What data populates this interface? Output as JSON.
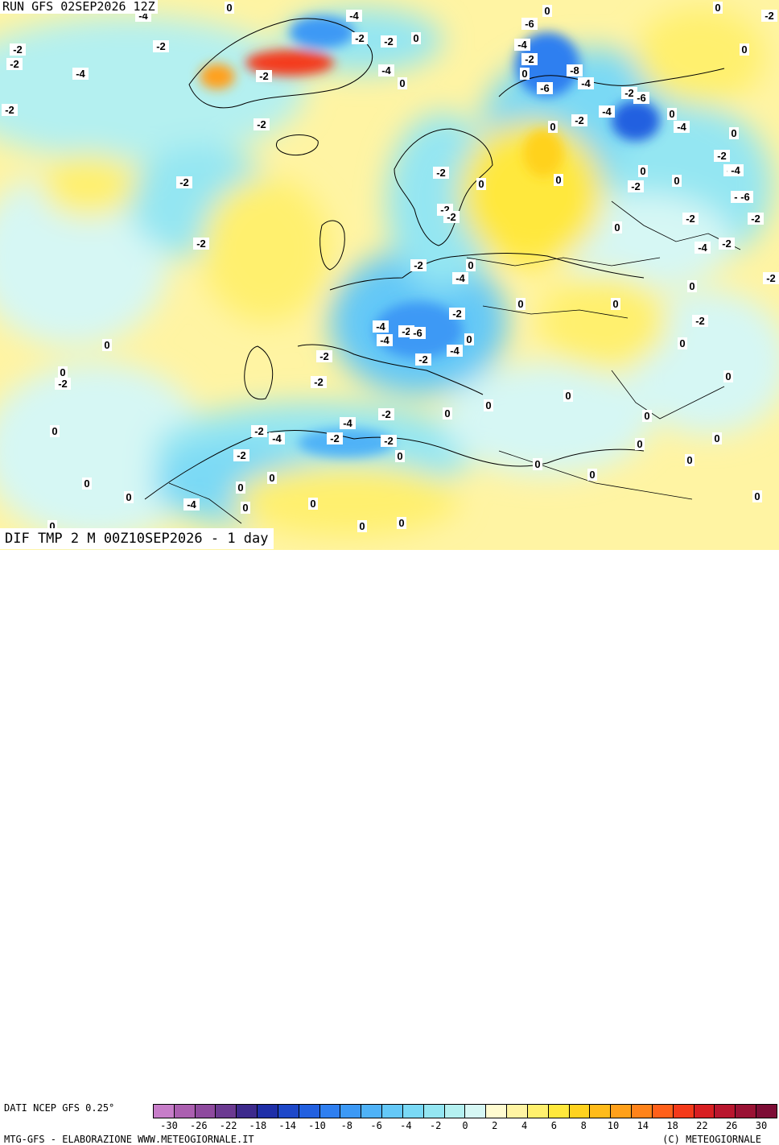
{
  "header": {
    "run_label": "RUN GFS 02SEP2026 12Z",
    "field_label": "DIF TMP 2 M 00Z10SEP2026 - 1 day"
  },
  "footer": {
    "data_source": "DATI NCEP GFS 0.25°",
    "credits_left": "MTG-GFS - ELABORAZIONE WWW.METEOGIORNALE.IT",
    "credits_right": "(C) METEOGIORNALE"
  },
  "legend": {
    "colors": [
      "#c77dc9",
      "#ab5fb0",
      "#8e4a9e",
      "#6b3a91",
      "#3d2a8c",
      "#1f2fa8",
      "#1e48c9",
      "#2260e0",
      "#2f7ff0",
      "#3c99f5",
      "#4fb2f7",
      "#64c8f7",
      "#7ad9f5",
      "#94e6f2",
      "#b4f0f0",
      "#d6f7f4",
      "#fffbd0",
      "#fff4a3",
      "#fff06e",
      "#ffe83c",
      "#ffd21f",
      "#ffbb1a",
      "#ffa01a",
      "#ff831a",
      "#ff601a",
      "#f43a1a",
      "#d81f22",
      "#b9162e",
      "#9a1234",
      "#7d0d35"
    ],
    "tick_labels": [
      "-30",
      "-26",
      "-22",
      "-18",
      "-14",
      "-10",
      "-8",
      "-6",
      "-4",
      "-2",
      "0",
      "2",
      "4",
      "6",
      "8",
      "10",
      "14",
      "18",
      "22",
      "26",
      "30"
    ]
  },
  "map_labels": [
    {
      "t": "-4"
    },
    {
      "t": "0"
    },
    {
      "t": "-2"
    },
    {
      "t": "-2"
    },
    {
      "t": "-4"
    },
    {
      "t": "-2"
    },
    {
      "t": "-2"
    },
    {
      "t": "-2"
    },
    {
      "t": "-2"
    },
    {
      "t": "-4"
    },
    {
      "t": "-2"
    },
    {
      "t": "-2"
    },
    {
      "t": "0"
    },
    {
      "t": "-4"
    },
    {
      "t": "0"
    },
    {
      "t": "-2"
    },
    {
      "t": "-2"
    },
    {
      "t": "-6"
    },
    {
      "t": "0"
    },
    {
      "t": "-4"
    },
    {
      "t": "-2"
    },
    {
      "t": "0"
    },
    {
      "t": "-8"
    },
    {
      "t": "-6"
    },
    {
      "t": "-4"
    },
    {
      "t": "-2"
    },
    {
      "t": "-6"
    },
    {
      "t": "-4"
    },
    {
      "t": "-2"
    },
    {
      "t": "0"
    },
    {
      "t": "-4"
    },
    {
      "t": "0"
    },
    {
      "t": "0"
    },
    {
      "t": "-2"
    },
    {
      "t": "-2"
    },
    {
      "t": "0"
    },
    {
      "t": "-2"
    },
    {
      "t": "-4"
    },
    {
      "t": "-2"
    },
    {
      "t": "0"
    },
    {
      "t": "0"
    },
    {
      "t": "0"
    },
    {
      "t": "-2"
    },
    {
      "t": "0"
    },
    {
      "t": "-2"
    },
    {
      "t": "-6"
    },
    {
      "t": "-2"
    },
    {
      "t": "-2"
    },
    {
      "t": "-2"
    },
    {
      "t": "0"
    },
    {
      "t": "-2"
    },
    {
      "t": "-4"
    },
    {
      "t": "-2"
    },
    {
      "t": "0"
    },
    {
      "t": "-2"
    },
    {
      "t": "-4"
    },
    {
      "t": "0"
    },
    {
      "t": "-2"
    },
    {
      "t": "0"
    },
    {
      "t": "-2"
    },
    {
      "t": "-2"
    },
    {
      "t": "-4"
    },
    {
      "t": "-4"
    },
    {
      "t": "-6"
    },
    {
      "t": "0"
    },
    {
      "t": "-4"
    },
    {
      "t": "0"
    },
    {
      "t": "-2"
    },
    {
      "t": "-2"
    },
    {
      "t": "0"
    },
    {
      "t": "0"
    },
    {
      "t": "-2"
    },
    {
      "t": "0"
    },
    {
      "t": "0"
    },
    {
      "t": "-2"
    },
    {
      "t": "-2"
    },
    {
      "t": "0"
    },
    {
      "t": "0"
    },
    {
      "t": "0"
    },
    {
      "t": "0"
    },
    {
      "t": "-4"
    },
    {
      "t": "-2"
    },
    {
      "t": "-4"
    },
    {
      "t": "-2"
    },
    {
      "t": "-2"
    },
    {
      "t": "0"
    },
    {
      "t": "0"
    },
    {
      "t": "-2"
    },
    {
      "t": "0"
    },
    {
      "t": "0"
    },
    {
      "t": "0"
    },
    {
      "t": "0"
    },
    {
      "t": "0"
    },
    {
      "t": "-4"
    },
    {
      "t": "0"
    },
    {
      "t": "0"
    },
    {
      "t": "0"
    },
    {
      "t": "0"
    },
    {
      "t": "0"
    },
    {
      "t": "0"
    },
    {
      "t": "0"
    },
    {
      "t": "0"
    },
    {
      "t": "0"
    },
    {
      "t": "0"
    },
    {
      "t": "-2"
    },
    {
      "t": "0"
    }
  ]
}
